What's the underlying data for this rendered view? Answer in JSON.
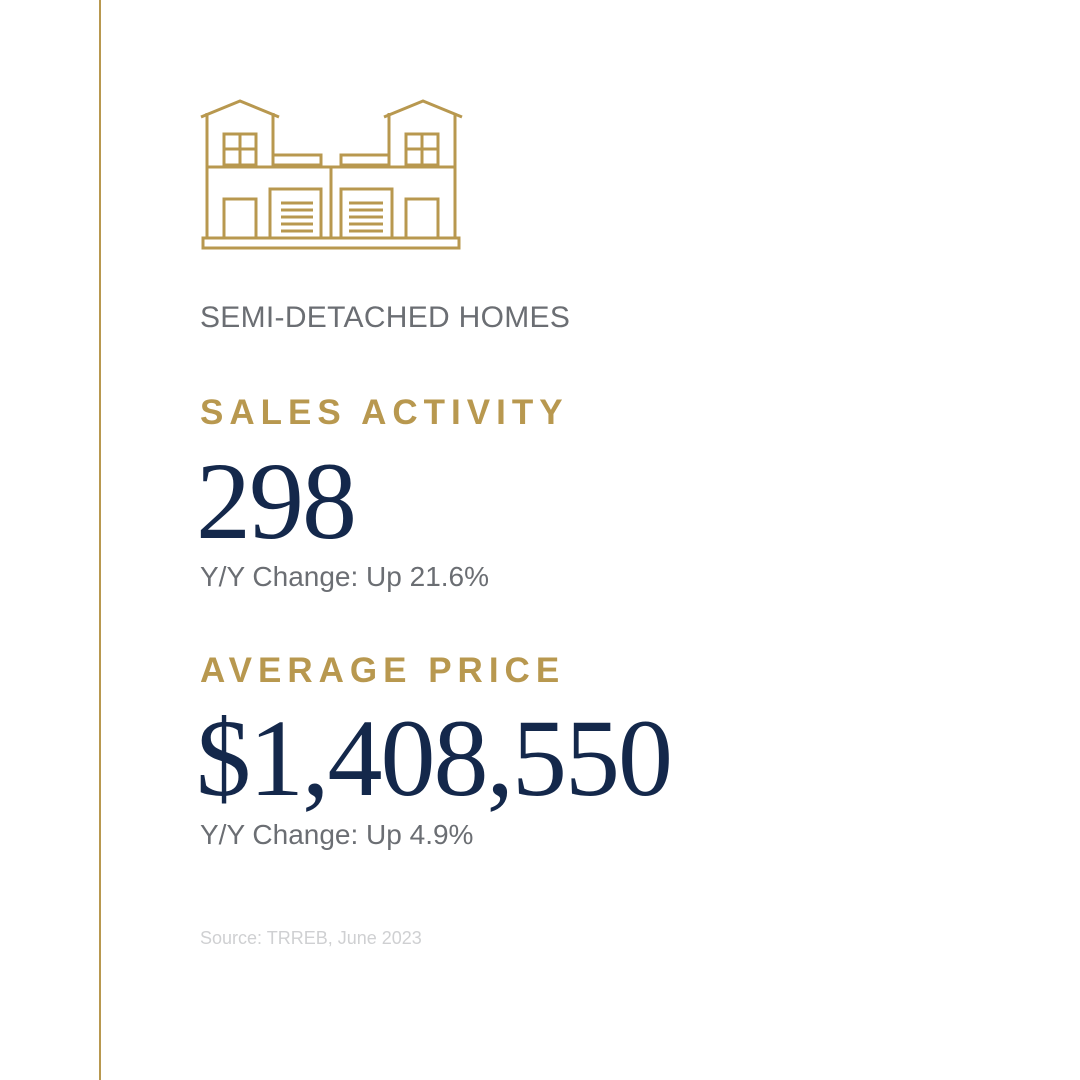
{
  "colors": {
    "gold": "#b8984f",
    "navy": "#14284b",
    "gray": "#6b6e73",
    "light_gray": "#cfd0d2"
  },
  "icon": "semi-detached-house-icon",
  "category": "SEMI-DETACHED HOMES",
  "sales": {
    "label": "SALES ACTIVITY",
    "value": "298",
    "change": "Y/Y Change: Up 21.6%"
  },
  "price": {
    "label": "AVERAGE PRICE",
    "value": "$1,408,550",
    "change": "Y/Y Change: Up 4.9%"
  },
  "source": "Source: TRREB, June 2023"
}
